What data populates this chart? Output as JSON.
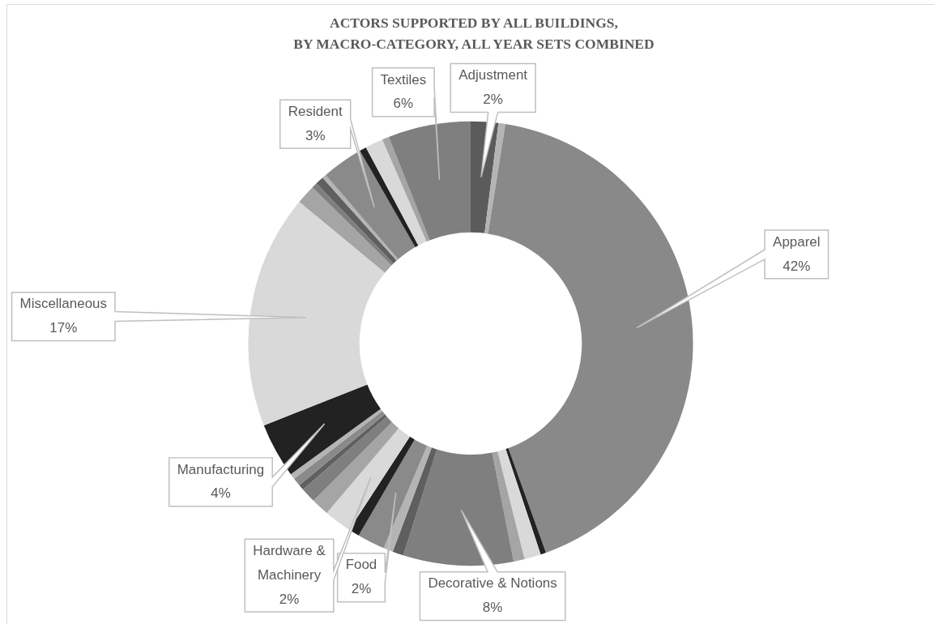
{
  "chart_data": {
    "type": "donut",
    "title": "ACTORS SUPPORTED BY ALL BUILDINGS,\nBY MACRO-CATEGORY, ALL YEAR SETS COMBINED",
    "categories": [
      "Adjustment",
      null,
      "Apparel",
      null,
      null,
      null,
      "Decorative & Notions",
      null,
      null,
      "Food",
      null,
      "Hardware & Machinery",
      null,
      null,
      null,
      null,
      null,
      "Manufacturing",
      "Miscellaneous",
      null,
      null,
      null,
      null,
      "Resident",
      null,
      null,
      null,
      "Textiles"
    ],
    "values": [
      2,
      0.5,
      42,
      0.4,
      1.2,
      0.8,
      8,
      0.8,
      0.7,
      2,
      0.8,
      2,
      1.3,
      1.1,
      0.4,
      0.6,
      0.4,
      4,
      17,
      1.4,
      0.4,
      0.6,
      0.3,
      3,
      0.5,
      1.3,
      0.5,
      6
    ],
    "colors": [
      "#5b5b5b",
      "#b4b4b4",
      "#898989",
      "#222222",
      "#d9d9d9",
      "#a5a5a5",
      "#7f7f7f",
      "#5f5f5f",
      "#b4b4b4",
      "#8a8a8a",
      "#222222",
      "#d9d9d9",
      "#a5a5a5",
      "#7f7f7f",
      "#5f5f5f",
      "#8a8a8a",
      "#b4b4b4",
      "#222222",
      "#d9d9d9",
      "#a5a5a5",
      "#7f7f7f",
      "#5f5f5f",
      "#b4b4b4",
      "#8a8a8a",
      "#222222",
      "#d9d9d9",
      "#a5a5a5",
      "#7f7f7f"
    ],
    "value_labels": [
      "2%",
      null,
      "42%",
      null,
      null,
      null,
      "8%",
      null,
      null,
      "2%",
      null,
      "2%",
      null,
      null,
      null,
      null,
      null,
      "4%",
      "17%",
      null,
      null,
      null,
      null,
      "3%",
      null,
      null,
      null,
      "6%"
    ]
  }
}
